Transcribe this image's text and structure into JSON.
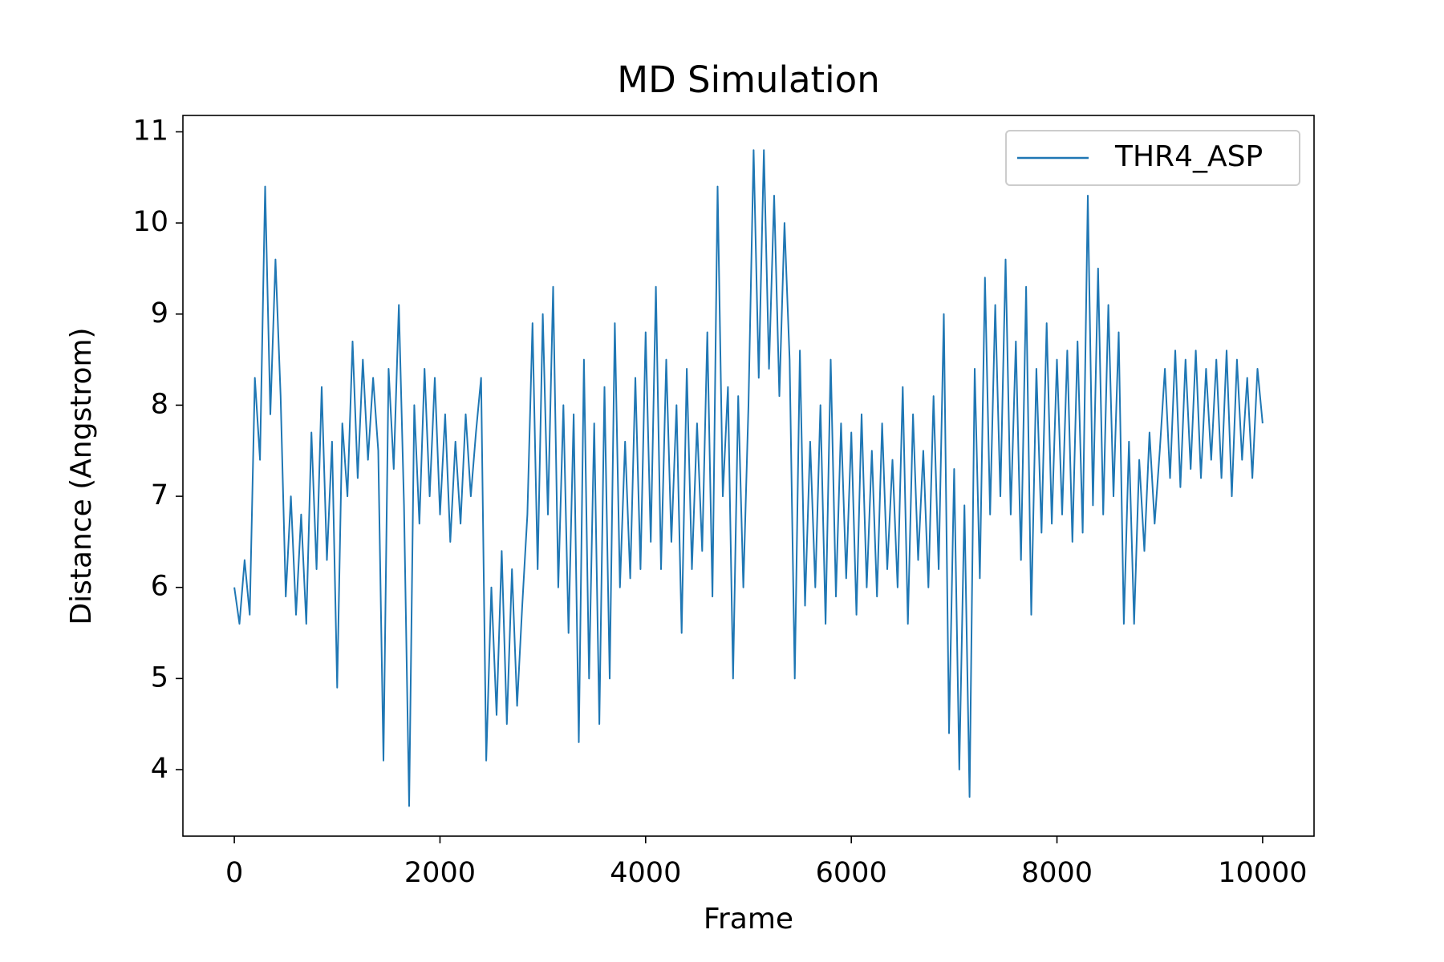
{
  "chart_data": {
    "type": "line",
    "title": "MD Simulation",
    "x_label": "Frame",
    "y_label": "Distance (Angstrom)",
    "x": [
      0,
      50,
      100,
      150,
      200,
      250,
      300,
      350,
      400,
      450,
      500,
      550,
      600,
      650,
      700,
      750,
      800,
      850,
      900,
      950,
      1000,
      1050,
      1100,
      1150,
      1200,
      1250,
      1300,
      1350,
      1400,
      1450,
      1500,
      1550,
      1600,
      1650,
      1700,
      1750,
      1800,
      1850,
      1900,
      1950,
      2000,
      2050,
      2100,
      2150,
      2200,
      2250,
      2300,
      2350,
      2400,
      2450,
      2500,
      2550,
      2600,
      2650,
      2700,
      2750,
      2800,
      2850,
      2900,
      2950,
      3000,
      3050,
      3100,
      3150,
      3200,
      3250,
      3300,
      3350,
      3400,
      3450,
      3500,
      3550,
      3600,
      3650,
      3700,
      3750,
      3800,
      3850,
      3900,
      3950,
      4000,
      4050,
      4100,
      4150,
      4200,
      4250,
      4300,
      4350,
      4400,
      4450,
      4500,
      4550,
      4600,
      4650,
      4700,
      4750,
      4800,
      4850,
      4900,
      4950,
      5000,
      5050,
      5100,
      5150,
      5200,
      5250,
      5300,
      5350,
      5400,
      5450,
      5500,
      5550,
      5600,
      5650,
      5700,
      5750,
      5800,
      5850,
      5900,
      5950,
      6000,
      6050,
      6100,
      6150,
      6200,
      6250,
      6300,
      6350,
      6400,
      6450,
      6500,
      6550,
      6600,
      6650,
      6700,
      6750,
      6800,
      6850,
      6900,
      6950,
      7000,
      7050,
      7100,
      7150,
      7200,
      7250,
      7300,
      7350,
      7400,
      7450,
      7500,
      7550,
      7600,
      7650,
      7700,
      7750,
      7800,
      7850,
      7900,
      7950,
      8000,
      8050,
      8100,
      8150,
      8200,
      8250,
      8300,
      8350,
      8400,
      8450,
      8500,
      8550,
      8600,
      8650,
      8700,
      8750,
      8800,
      8850,
      8900,
      8950,
      9000,
      9050,
      9100,
      9150,
      9200,
      9250,
      9300,
      9350,
      9400,
      9450,
      9500,
      9550,
      9600,
      9650,
      9700,
      9750,
      9800,
      9850,
      9900,
      9950,
      10000
    ],
    "series": [
      {
        "name": "THR4_ASP",
        "color": "#1f77b4",
        "values": [
          6.0,
          5.6,
          6.3,
          5.7,
          8.3,
          7.4,
          10.4,
          7.9,
          9.6,
          8.1,
          5.9,
          7.0,
          5.7,
          6.8,
          5.6,
          7.7,
          6.2,
          8.2,
          6.3,
          7.6,
          4.9,
          7.8,
          7.0,
          8.7,
          7.2,
          8.5,
          7.4,
          8.3,
          7.5,
          4.1,
          8.4,
          7.3,
          9.1,
          6.9,
          3.6,
          8.0,
          6.7,
          8.4,
          7.0,
          8.3,
          6.8,
          7.9,
          6.5,
          7.6,
          6.7,
          7.9,
          7.0,
          7.7,
          8.3,
          4.1,
          6.0,
          4.6,
          6.4,
          4.5,
          6.2,
          4.7,
          5.8,
          6.8,
          8.9,
          6.2,
          9.0,
          6.8,
          9.3,
          6.0,
          8.0,
          5.5,
          7.9,
          4.3,
          8.5,
          5.0,
          7.8,
          4.5,
          8.2,
          5.0,
          8.9,
          6.0,
          7.6,
          6.1,
          8.3,
          6.2,
          8.8,
          6.5,
          9.3,
          6.2,
          8.5,
          6.5,
          8.0,
          5.5,
          8.4,
          6.2,
          7.8,
          6.4,
          8.8,
          5.9,
          10.4,
          7.0,
          8.2,
          5.0,
          8.1,
          6.0,
          8.0,
          10.8,
          8.3,
          10.8,
          8.4,
          10.3,
          8.1,
          10.0,
          8.5,
          5.0,
          8.6,
          5.8,
          7.6,
          6.0,
          8.0,
          5.6,
          8.5,
          5.9,
          7.8,
          6.1,
          7.7,
          5.7,
          7.9,
          6.0,
          7.5,
          5.9,
          7.8,
          6.2,
          7.4,
          6.0,
          8.2,
          5.6,
          7.9,
          6.3,
          7.5,
          6.0,
          8.1,
          6.2,
          9.0,
          4.4,
          7.3,
          4.0,
          6.9,
          3.7,
          8.4,
          6.1,
          9.4,
          6.8,
          9.1,
          7.0,
          9.6,
          6.8,
          8.7,
          6.3,
          9.3,
          5.7,
          8.4,
          6.6,
          8.9,
          6.7,
          8.5,
          6.8,
          8.6,
          6.5,
          8.7,
          6.6,
          10.3,
          6.9,
          9.5,
          6.8,
          9.1,
          7.0,
          8.8,
          5.6,
          7.6,
          5.6,
          7.4,
          6.4,
          7.7,
          6.7,
          7.5,
          8.4,
          7.2,
          8.6,
          7.1,
          8.5,
          7.3,
          8.6,
          7.2,
          8.4,
          7.4,
          8.5,
          7.2,
          8.6,
          7.0,
          8.5,
          7.4,
          8.3,
          7.2,
          8.4,
          7.8
        ]
      }
    ],
    "xlim": [
      -500,
      10500
    ],
    "ylim": [
      3.27,
      11.18
    ],
    "xticks": [
      0,
      2000,
      4000,
      6000,
      8000,
      10000
    ],
    "yticks": [
      4,
      5,
      6,
      7,
      8,
      9,
      10,
      11
    ],
    "grid": false,
    "legend": "upper right"
  }
}
